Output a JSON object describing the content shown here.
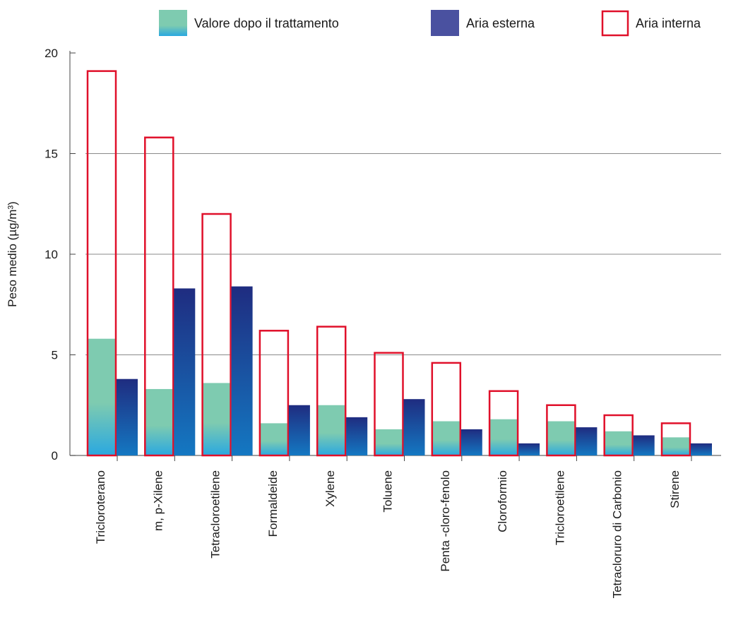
{
  "chart_data": {
    "type": "bar",
    "ylabel": "Peso medio (µg/m³)",
    "ylim": [
      0,
      20
    ],
    "yticks": [
      0,
      5,
      10,
      15,
      20
    ],
    "grid": true,
    "legend_position": "top",
    "categories": [
      "Tricloroterano",
      "m, p-Xilene",
      "Tetracloroetilene",
      "Formaldeide",
      "Xylene",
      "Toluene",
      "Penta -cloro-fenolo",
      "Cloroformio",
      "Tricloroetilene",
      "Tetracloruro di Carbonio",
      "Stirene"
    ],
    "series": [
      {
        "name": "Valore dopo il trattamento",
        "values": [
          5.8,
          3.3,
          3.6,
          1.6,
          2.5,
          1.3,
          1.7,
          1.8,
          1.7,
          1.2,
          0.9
        ],
        "color_top": "#7ecbb0",
        "color_bottom": "#2aa8e0"
      },
      {
        "name": "Aria esterna",
        "values": [
          3.8,
          8.3,
          8.4,
          2.5,
          1.9,
          2.8,
          1.3,
          0.6,
          1.4,
          1.0,
          0.6
        ],
        "color_top": "#1f2c80",
        "color_bottom": "#1478c2"
      },
      {
        "name": "Aria interna",
        "values": [
          19.1,
          15.8,
          12.0,
          6.2,
          6.4,
          5.1,
          4.6,
          3.2,
          2.5,
          2.0,
          1.6
        ],
        "stroke": "#e0102a"
      }
    ],
    "legend_external_swatch": "#4a51a0"
  }
}
